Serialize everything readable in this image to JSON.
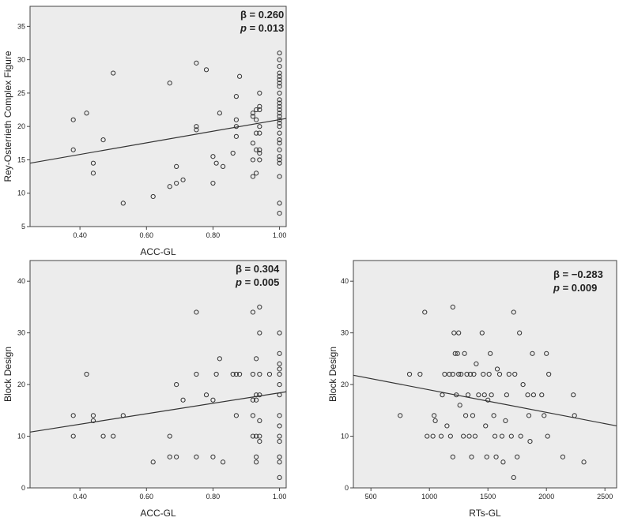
{
  "chart_data": [
    {
      "type": "scatter",
      "xlabel": "ACC-GL",
      "ylabel": "Rey-Osterrieth Complex Figure",
      "xlim": [
        0.25,
        1.02
      ],
      "ylim": [
        5,
        38
      ],
      "xticks": [
        "0.40",
        "0.60",
        "0.80",
        "1.00"
      ],
      "yticks": [
        "5",
        "10",
        "15",
        "20",
        "25",
        "30",
        "35"
      ],
      "annotation": {
        "beta_text": "β = 0.260",
        "p_symbol": "p",
        "p_value": "= 0.013"
      },
      "fit_line": {
        "x": [
          0.25,
          1.02
        ],
        "y": [
          14.5,
          21.2
        ]
      },
      "points": [
        [
          0.38,
          21
        ],
        [
          0.38,
          16.5
        ],
        [
          0.42,
          22
        ],
        [
          0.44,
          14.5
        ],
        [
          0.44,
          13
        ],
        [
          0.47,
          18
        ],
        [
          0.5,
          28
        ],
        [
          0.53,
          8.5
        ],
        [
          0.62,
          9.5
        ],
        [
          0.67,
          26.5
        ],
        [
          0.67,
          11
        ],
        [
          0.69,
          14
        ],
        [
          0.69,
          11.5
        ],
        [
          0.71,
          12
        ],
        [
          0.75,
          29.5
        ],
        [
          0.75,
          20
        ],
        [
          0.75,
          19.5
        ],
        [
          0.78,
          28.5
        ],
        [
          0.8,
          15.5
        ],
        [
          0.8,
          11.5
        ],
        [
          0.81,
          14.5
        ],
        [
          0.82,
          22
        ],
        [
          0.83,
          14
        ],
        [
          0.86,
          16
        ],
        [
          0.87,
          24.5
        ],
        [
          0.87,
          21
        ],
        [
          0.87,
          20
        ],
        [
          0.87,
          18.5
        ],
        [
          0.88,
          27.5
        ],
        [
          0.92,
          22
        ],
        [
          0.92,
          21.5
        ],
        [
          0.92,
          17.5
        ],
        [
          0.92,
          15
        ],
        [
          0.92,
          12.5
        ],
        [
          0.93,
          22.5
        ],
        [
          0.93,
          21
        ],
        [
          0.93,
          19
        ],
        [
          0.93,
          16.5
        ],
        [
          0.93,
          13
        ],
        [
          0.94,
          25
        ],
        [
          0.94,
          23
        ],
        [
          0.94,
          22.5
        ],
        [
          0.94,
          20
        ],
        [
          0.94,
          19
        ],
        [
          0.94,
          16.5
        ],
        [
          0.94,
          16
        ],
        [
          0.94,
          15
        ],
        [
          1.0,
          31
        ],
        [
          1.0,
          30
        ],
        [
          1.0,
          29
        ],
        [
          1.0,
          28
        ],
        [
          1.0,
          27.5
        ],
        [
          1.0,
          27
        ],
        [
          1.0,
          26.5
        ],
        [
          1.0,
          26
        ],
        [
          1.0,
          25
        ],
        [
          1.0,
          24
        ],
        [
          1.0,
          23.5
        ],
        [
          1.0,
          23
        ],
        [
          1.0,
          22.5
        ],
        [
          1.0,
          22
        ],
        [
          1.0,
          21.5
        ],
        [
          1.0,
          21
        ],
        [
          1.0,
          20.5
        ],
        [
          1.0,
          20
        ],
        [
          1.0,
          19
        ],
        [
          1.0,
          18
        ],
        [
          1.0,
          17.5
        ],
        [
          1.0,
          16.5
        ],
        [
          1.0,
          15.5
        ],
        [
          1.0,
          15
        ],
        [
          1.0,
          14.5
        ],
        [
          1.0,
          12.5
        ],
        [
          1.0,
          8.5
        ],
        [
          1.0,
          7
        ]
      ]
    },
    {
      "type": "scatter",
      "xlabel": "ACC-GL",
      "ylabel": "Block Design",
      "xlim": [
        0.25,
        1.02
      ],
      "ylim": [
        0,
        44
      ],
      "xticks": [
        "0.40",
        "0.60",
        "0.80",
        "1.00"
      ],
      "yticks": [
        "0",
        "10",
        "20",
        "30",
        "40"
      ],
      "annotation": {
        "beta_text": "β = 0.304",
        "p_symbol": "p",
        "p_value": "= 0.005"
      },
      "fit_line": {
        "x": [
          0.25,
          1.02
        ],
        "y": [
          10.8,
          18.6
        ]
      },
      "points": [
        [
          0.38,
          14
        ],
        [
          0.38,
          10
        ],
        [
          0.42,
          22
        ],
        [
          0.44,
          14
        ],
        [
          0.44,
          13
        ],
        [
          0.47,
          10
        ],
        [
          0.5,
          10
        ],
        [
          0.53,
          14
        ],
        [
          0.62,
          5
        ],
        [
          0.67,
          10
        ],
        [
          0.67,
          6
        ],
        [
          0.69,
          20
        ],
        [
          0.69,
          6
        ],
        [
          0.71,
          17
        ],
        [
          0.75,
          34
        ],
        [
          0.75,
          22
        ],
        [
          0.75,
          6
        ],
        [
          0.78,
          18
        ],
        [
          0.8,
          17
        ],
        [
          0.8,
          6
        ],
        [
          0.81,
          22
        ],
        [
          0.82,
          25
        ],
        [
          0.83,
          5
        ],
        [
          0.86,
          22
        ],
        [
          0.87,
          22
        ],
        [
          0.87,
          14
        ],
        [
          0.88,
          22
        ],
        [
          0.92,
          34
        ],
        [
          0.92,
          22
        ],
        [
          0.92,
          17
        ],
        [
          0.92,
          14
        ],
        [
          0.92,
          10
        ],
        [
          0.93,
          25
        ],
        [
          0.93,
          18
        ],
        [
          0.93,
          17
        ],
        [
          0.93,
          10
        ],
        [
          0.93,
          6
        ],
        [
          0.93,
          5
        ],
        [
          0.94,
          35
        ],
        [
          0.94,
          30
        ],
        [
          0.94,
          22
        ],
        [
          0.94,
          18
        ],
        [
          0.94,
          13
        ],
        [
          0.94,
          10
        ],
        [
          0.94,
          9
        ],
        [
          0.97,
          22
        ],
        [
          1.0,
          30
        ],
        [
          1.0,
          26
        ],
        [
          1.0,
          24
        ],
        [
          1.0,
          23
        ],
        [
          1.0,
          22
        ],
        [
          1.0,
          20
        ],
        [
          1.0,
          18
        ],
        [
          1.0,
          14
        ],
        [
          1.0,
          12
        ],
        [
          1.0,
          10
        ],
        [
          1.0,
          9
        ],
        [
          1.0,
          6
        ],
        [
          1.0,
          5
        ],
        [
          1.0,
          2
        ]
      ]
    },
    {
      "type": "scatter",
      "xlabel": "RTs-GL",
      "ylabel": "Block Design",
      "xlim": [
        350,
        2600
      ],
      "ylim": [
        0,
        44
      ],
      "xticks": [
        "500",
        "1000",
        "1500",
        "2000",
        "2500"
      ],
      "yticks": [
        "0",
        "10",
        "20",
        "30",
        "40"
      ],
      "annotation": {
        "beta_text": "β = −0.283",
        "p_symbol": "p",
        "p_value": "= 0.009"
      },
      "fit_line": {
        "x": [
          350,
          2600
        ],
        "y": [
          21.8,
          12.0
        ]
      },
      "points": [
        [
          750,
          14
        ],
        [
          830,
          22
        ],
        [
          920,
          22
        ],
        [
          960,
          34
        ],
        [
          980,
          10
        ],
        [
          1030,
          10
        ],
        [
          1040,
          14
        ],
        [
          1050,
          13
        ],
        [
          1100,
          10
        ],
        [
          1110,
          18
        ],
        [
          1130,
          22
        ],
        [
          1150,
          12
        ],
        [
          1170,
          22
        ],
        [
          1180,
          10
        ],
        [
          1200,
          35
        ],
        [
          1200,
          22
        ],
        [
          1200,
          6
        ],
        [
          1210,
          30
        ],
        [
          1220,
          26
        ],
        [
          1230,
          18
        ],
        [
          1240,
          26
        ],
        [
          1250,
          30
        ],
        [
          1250,
          22
        ],
        [
          1260,
          16
        ],
        [
          1270,
          22
        ],
        [
          1290,
          10
        ],
        [
          1300,
          26
        ],
        [
          1310,
          14
        ],
        [
          1320,
          22
        ],
        [
          1330,
          18
        ],
        [
          1340,
          10
        ],
        [
          1350,
          22
        ],
        [
          1360,
          6
        ],
        [
          1370,
          14
        ],
        [
          1380,
          22
        ],
        [
          1390,
          10
        ],
        [
          1400,
          24
        ],
        [
          1420,
          18
        ],
        [
          1450,
          30
        ],
        [
          1460,
          22
        ],
        [
          1470,
          18
        ],
        [
          1480,
          12
        ],
        [
          1490,
          6
        ],
        [
          1500,
          17
        ],
        [
          1510,
          22
        ],
        [
          1520,
          26
        ],
        [
          1530,
          18
        ],
        [
          1550,
          14
        ],
        [
          1560,
          10
        ],
        [
          1570,
          6
        ],
        [
          1580,
          23
        ],
        [
          1600,
          22
        ],
        [
          1620,
          10
        ],
        [
          1630,
          5
        ],
        [
          1650,
          13
        ],
        [
          1660,
          18
        ],
        [
          1680,
          22
        ],
        [
          1700,
          10
        ],
        [
          1720,
          34
        ],
        [
          1730,
          22
        ],
        [
          1750,
          6
        ],
        [
          1770,
          30
        ],
        [
          1780,
          10
        ],
        [
          1800,
          20
        ],
        [
          1840,
          18
        ],
        [
          1850,
          14
        ],
        [
          1860,
          9
        ],
        [
          1880,
          26
        ],
        [
          1890,
          18
        ],
        [
          1960,
          18
        ],
        [
          1980,
          14
        ],
        [
          2000,
          26
        ],
        [
          2010,
          10
        ],
        [
          2020,
          22
        ],
        [
          2140,
          6
        ],
        [
          2230,
          18
        ],
        [
          2240,
          14
        ],
        [
          2320,
          5
        ],
        [
          1720,
          2
        ]
      ]
    }
  ]
}
